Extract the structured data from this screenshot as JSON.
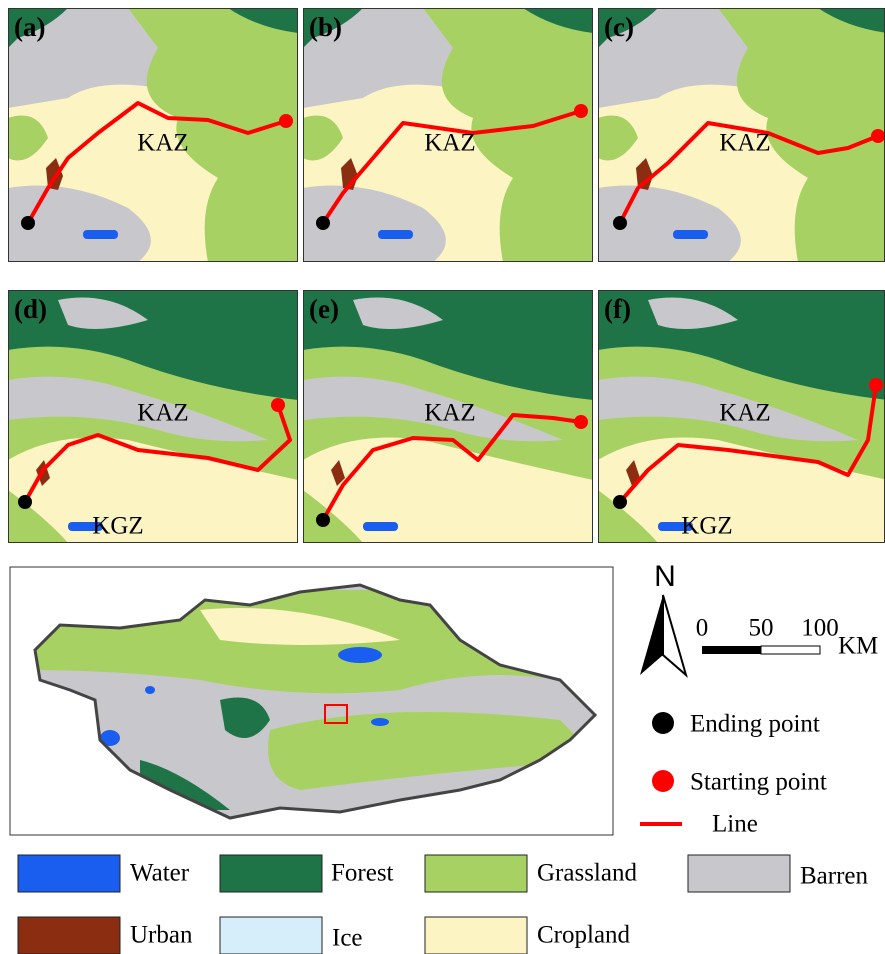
{
  "panels": [
    {
      "label": "(a)",
      "texts": [
        "KAZ"
      ]
    },
    {
      "label": "(b)",
      "texts": [
        "KAZ"
      ]
    },
    {
      "label": "(c)",
      "texts": [
        "KAZ"
      ]
    },
    {
      "label": "(d)",
      "texts": [
        "KAZ",
        "KGZ"
      ]
    },
    {
      "label": "(e)",
      "texts": [
        "KAZ"
      ]
    },
    {
      "label": "(f)",
      "texts": [
        "KAZ",
        "KGZ"
      ]
    }
  ],
  "north": "N",
  "scale_bar": {
    "ticks": [
      0,
      50,
      100
    ],
    "unit": "KM"
  },
  "point_legend": [
    {
      "label": "Ending point",
      "color": "#000000"
    },
    {
      "label": "Starting point",
      "color": "#ff0000"
    },
    {
      "label": "Line",
      "color": "#ff0000"
    }
  ],
  "land_cover_legend": [
    {
      "label": "Water",
      "color": "#1a5ef0"
    },
    {
      "label": "Forest",
      "color": "#1e7446"
    },
    {
      "label": "Grassland",
      "color": "#a8d164"
    },
    {
      "label": "Barren",
      "color": "#c8c8cc"
    },
    {
      "label": "Urban",
      "color": "#8b2d10"
    },
    {
      "label": "Ice",
      "color": "#d6eefa"
    },
    {
      "label": "Cropland",
      "color": "#fdf4c4"
    }
  ]
}
